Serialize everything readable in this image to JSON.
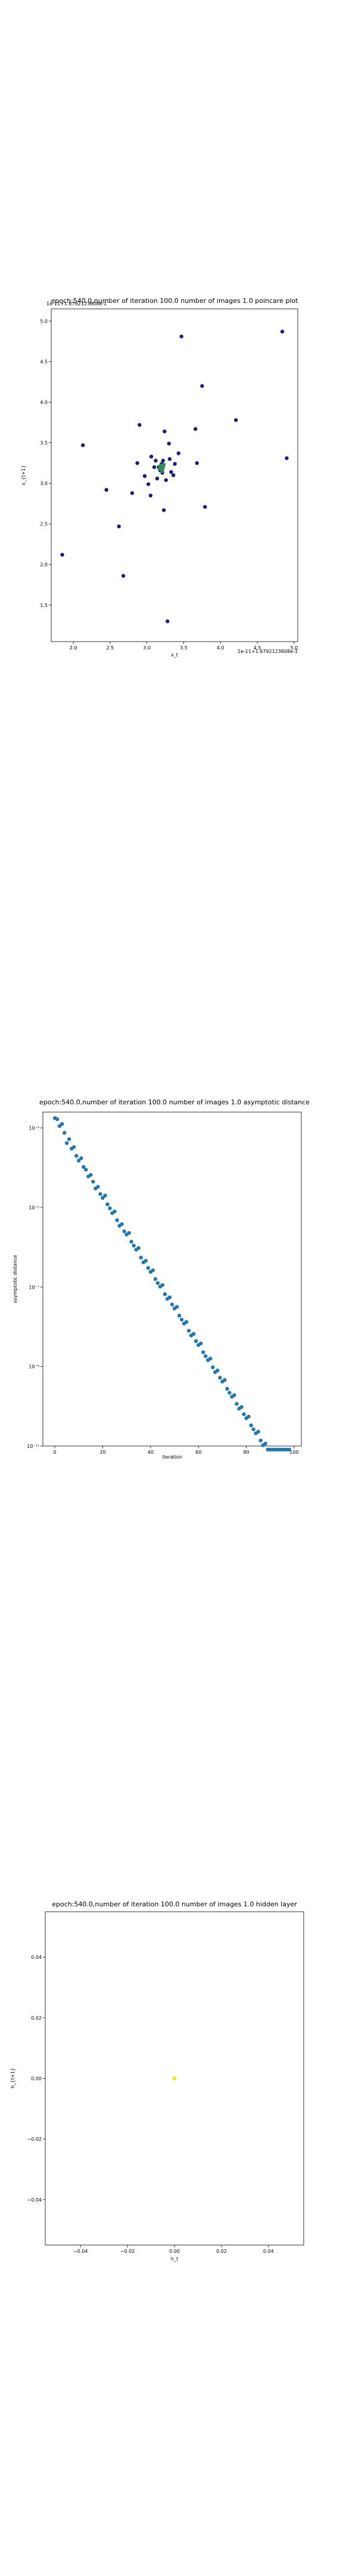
{
  "chart_data": [
    {
      "type": "scatter",
      "title": "epoch:540.0,number of iteration 100.0 number of images 1.0 poincare plot",
      "xlabel": "x_t",
      "ylabel": "x_{t+1}",
      "offset_text": "1e-11+1.6792123608e-1",
      "top_overlay_text": "1e-11+1.6792123608e-1",
      "xlim": [
        1.7,
        5.05
      ],
      "ylim": [
        1.05,
        5.15
      ],
      "x_ticks": [
        "2.0",
        "2.5",
        "3.0",
        "3.5",
        "4.0",
        "4.5",
        "5.0"
      ],
      "y_ticks": [
        "1.5",
        "2.0",
        "2.5",
        "3.0",
        "3.5",
        "4.0",
        "4.5",
        "5.0"
      ],
      "series": [
        {
          "color": "#1a1a80",
          "points": [
            [
              1.85,
              2.12
            ],
            [
              2.13,
              3.47
            ],
            [
              2.45,
              2.92
            ],
            [
              2.62,
              2.47
            ],
            [
              2.68,
              1.86
            ],
            [
              2.8,
              2.88
            ],
            [
              2.87,
              3.25
            ],
            [
              2.9,
              3.72
            ],
            [
              2.97,
              3.09
            ],
            [
              3.02,
              2.99
            ],
            [
              3.05,
              2.85
            ],
            [
              3.06,
              3.33
            ],
            [
              3.1,
              3.2
            ],
            [
              3.12,
              3.28
            ],
            [
              3.14,
              3.06
            ],
            [
              3.16,
              3.2
            ],
            [
              3.18,
              3.16
            ],
            [
              3.2,
              3.24
            ],
            [
              3.21,
              3.13
            ],
            [
              3.22,
              3.28
            ],
            [
              3.23,
              2.67
            ],
            [
              3.24,
              3.64
            ],
            [
              3.26,
              3.04
            ],
            [
              3.28,
              1.3
            ],
            [
              3.3,
              3.49
            ],
            [
              3.31,
              3.3
            ],
            [
              3.33,
              3.14
            ],
            [
              3.36,
              3.1
            ],
            [
              3.38,
              3.24
            ],
            [
              3.43,
              3.37
            ],
            [
              3.47,
              4.81
            ],
            [
              3.66,
              3.67
            ],
            [
              3.68,
              3.25
            ],
            [
              3.75,
              4.2
            ],
            [
              3.79,
              2.71
            ],
            [
              4.21,
              3.78
            ],
            [
              4.84,
              4.87
            ],
            [
              4.9,
              3.31
            ]
          ]
        },
        {
          "color": "#2e8b57",
          "points": [
            [
              3.17,
              3.18
            ],
            [
              3.19,
              3.22
            ],
            [
              3.22,
              3.19
            ],
            [
              3.2,
              3.16
            ],
            [
              3.18,
              3.21
            ],
            [
              3.23,
              3.23
            ],
            [
              3.21,
              3.15
            ]
          ]
        }
      ]
    },
    {
      "type": "scatter",
      "title": "epoch:540.0,number of iteration 100.0  number of images 1.0 asymptotic distance",
      "xlabel": "iteration",
      "ylabel": "asymptotic distance",
      "yscale": "log",
      "xlim": [
        -5,
        103
      ],
      "ylim_log10": [
        -11,
        -2.6
      ],
      "x_ticks": [
        "0",
        "20",
        "40",
        "60",
        "80",
        "100"
      ],
      "y_ticks": [
        "10⁻³",
        "10⁻⁵",
        "10⁻⁷",
        "10⁻⁹",
        "10⁻¹¹"
      ],
      "marker_color": "#1f77b4",
      "series": [
        {
          "x": [
            0,
            1,
            2,
            3,
            4,
            5,
            6,
            7,
            8,
            9,
            10,
            11,
            12,
            13,
            14,
            15,
            16,
            17,
            18,
            19,
            20,
            21,
            22,
            23,
            24,
            25,
            26,
            27,
            28,
            29,
            30,
            31,
            32,
            33,
            34,
            35,
            36,
            37,
            38,
            39,
            40,
            41,
            42,
            43,
            44,
            45,
            46,
            47,
            48,
            49,
            50,
            51,
            52,
            53,
            54,
            55,
            56,
            57,
            58,
            59,
            60,
            61,
            62,
            63,
            64,
            65,
            66,
            67,
            68,
            69,
            70,
            71,
            72,
            73,
            74,
            75,
            76,
            77,
            78,
            79,
            80,
            81,
            82,
            83,
            84,
            85,
            86,
            87,
            88,
            89,
            90,
            91,
            92,
            93,
            94,
            95,
            96,
            97,
            98
          ],
          "log10_y": [
            -2.75,
            -2.78,
            -2.95,
            -2.9,
            -3.12,
            -3.38,
            -3.28,
            -3.52,
            -3.48,
            -3.7,
            -3.82,
            -3.76,
            -3.98,
            -4.05,
            -4.22,
            -4.18,
            -4.35,
            -4.52,
            -4.48,
            -4.66,
            -4.76,
            -4.7,
            -4.92,
            -5.02,
            -5.14,
            -5.1,
            -5.32,
            -5.46,
            -5.42,
            -5.6,
            -5.68,
            -5.64,
            -5.86,
            -5.96,
            -6.06,
            -6.02,
            -6.26,
            -6.38,
            -6.34,
            -6.52,
            -6.62,
            -6.58,
            -6.8,
            -6.9,
            -6.99,
            -6.95,
            -7.18,
            -7.3,
            -7.26,
            -7.44,
            -7.54,
            -7.5,
            -7.72,
            -7.82,
            -7.92,
            -7.88,
            -8.1,
            -8.22,
            -8.18,
            -8.36,
            -8.46,
            -8.42,
            -8.64,
            -8.74,
            -8.84,
            -8.8,
            -9.02,
            -9.14,
            -9.1,
            -9.28,
            -9.38,
            -9.34,
            -9.56,
            -9.66,
            -9.76,
            -9.72,
            -9.94,
            -10.06,
            -10.02,
            -10.2,
            -10.3,
            -10.26,
            -10.48,
            -10.58,
            -10.68,
            -10.64,
            -10.86,
            -10.98,
            -10.94,
            -11.12,
            -11.22,
            -11.18,
            -11.4,
            -11.5,
            -11.6,
            -11.56,
            -11.78,
            -11.9,
            -12.2
          ]
        }
      ]
    },
    {
      "type": "scatter",
      "title": "epoch:540.0,number of iteration 100.0  number of images 1.0 hidden layer",
      "xlabel": "h_t",
      "ylabel": "h_{t+1}",
      "xlim": [
        -0.055,
        0.055
      ],
      "ylim": [
        -0.055,
        0.055
      ],
      "x_ticks": [
        "−0.04",
        "−0.02",
        "0.00",
        "0.02",
        "0.04"
      ],
      "y_ticks": [
        "0.04",
        "0.02",
        "0.00",
        "−0.02",
        "−0.04"
      ],
      "marker_color": "#f2e51d",
      "series": [
        {
          "points": [
            [
              0.0,
              0.0
            ]
          ]
        }
      ]
    }
  ]
}
